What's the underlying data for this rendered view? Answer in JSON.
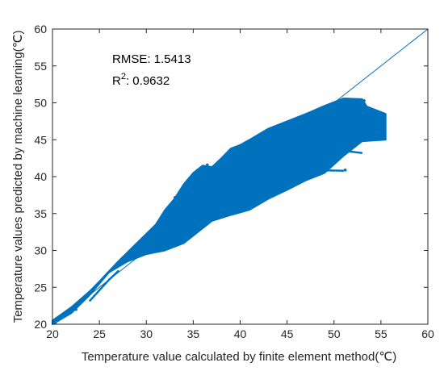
{
  "chart_data": {
    "type": "scatter",
    "title": "",
    "xlabel": "Temperature value calculated by finite element method(℃)",
    "ylabel": "Temperature values predicted by machine learning(℃)",
    "xlim": [
      20,
      60
    ],
    "ylim": [
      20,
      60
    ],
    "xticks": [
      "20",
      "25",
      "30",
      "35",
      "40",
      "45",
      "50",
      "55",
      "60"
    ],
    "yticks": [
      "20",
      "25",
      "30",
      "35",
      "40",
      "45",
      "50",
      "55",
      "60"
    ],
    "grid": false,
    "legend": "none",
    "annotations": {
      "rmse": "RMSE: 1.5413",
      "r2_prefix": "R",
      "r2_sup": "2",
      "r2_value": ": 0.9632"
    },
    "reference_line": {
      "x": [
        20,
        60
      ],
      "y": [
        20,
        60
      ]
    },
    "scatter_upper_boundary": [
      [
        20,
        20.5
      ],
      [
        22,
        22.3
      ],
      [
        24,
        24.5
      ],
      [
        25,
        25.8
      ],
      [
        27,
        28.5
      ],
      [
        29,
        31
      ],
      [
        31,
        33.5
      ],
      [
        32,
        35.5
      ],
      [
        33,
        37
      ],
      [
        34,
        39
      ],
      [
        35,
        40.5
      ],
      [
        36,
        41.5
      ],
      [
        37,
        41.3
      ],
      [
        38,
        42.5
      ],
      [
        39,
        43.8
      ],
      [
        40,
        44.3
      ],
      [
        41,
        45
      ],
      [
        43,
        46.5
      ],
      [
        45,
        47.5
      ],
      [
        47,
        48.5
      ],
      [
        49,
        49.6
      ],
      [
        51,
        50.6
      ],
      [
        53,
        50.5
      ]
    ],
    "scatter_lower_boundary": [
      [
        53.5,
        49.5
      ],
      [
        55.5,
        48.5
      ],
      [
        55.5,
        45
      ],
      [
        53,
        44.8
      ],
      [
        51,
        42.8
      ],
      [
        49,
        40.5
      ],
      [
        47,
        39.5
      ],
      [
        45,
        38.2
      ],
      [
        43,
        37
      ],
      [
        41,
        35.5
      ],
      [
        39,
        34.8
      ],
      [
        37,
        34
      ],
      [
        36,
        33
      ],
      [
        35,
        32
      ],
      [
        34,
        31
      ],
      [
        32,
        30
      ],
      [
        30,
        29.5
      ],
      [
        28,
        28.5
      ],
      [
        26,
        27
      ],
      [
        24,
        24
      ],
      [
        22,
        21.5
      ],
      [
        20,
        20
      ]
    ],
    "colors": {
      "points": "#0072BD",
      "line": "#0072BD",
      "axes": "#262626"
    }
  }
}
